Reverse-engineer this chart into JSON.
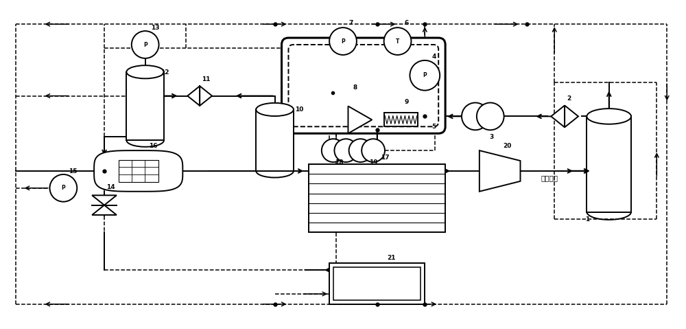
{
  "bg_color": "#ffffff",
  "line_color": "#000000",
  "dashed_color": "#000000",
  "figsize": [
    10.0,
    4.79
  ],
  "dpi": 100,
  "lw": 1.4,
  "dlw": 1.1,
  "labels": {
    "1": "1",
    "2": "2",
    "3": "3",
    "4": "4",
    "5": "5",
    "6": "6",
    "7": "7",
    "8": "8",
    "9": "9",
    "10": "10",
    "11": "11",
    "12": "12",
    "13": "13",
    "14": "14",
    "15": "15",
    "16": "16",
    "17": "17",
    "18": "18",
    "19": "19",
    "20": "20",
    "21": "21"
  },
  "text_exhaust": "排出大气",
  "xlim": [
    0,
    100
  ],
  "ylim": [
    0,
    47.9
  ]
}
